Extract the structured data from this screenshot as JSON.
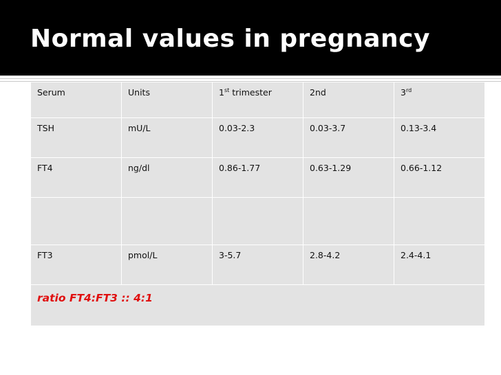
{
  "slide": {
    "title": "Normal values in pregnancy"
  },
  "table": {
    "header": {
      "serum": "Serum",
      "units": "Units",
      "t1_prefix": "1",
      "t1_sup": "st",
      "t1_suffix": " trimester",
      "t2": "2nd",
      "t3_prefix": "3",
      "t3_sup": "rd"
    },
    "rows": [
      {
        "serum": "TSH",
        "units": "mU/L",
        "t1": "0.03-2.3",
        "t2": "0.03-3.7",
        "t3": "0.13-3.4"
      },
      {
        "serum": "FT4",
        "units": "ng/dl",
        "t1": "0.86-1.77",
        "t2": "0.63-1.29",
        "t3": "0.66-1.12"
      },
      {
        "serum": "",
        "units": "",
        "t1": "",
        "t2": "",
        "t3": ""
      },
      {
        "serum": "FT3",
        "units": "pmol/L",
        "t1": "3-5.7",
        "t2": "2.8-4.2",
        "t3": "2.4-4.1"
      }
    ],
    "footer": "ratio FT4:FT3 :: 4:1"
  },
  "colors": {
    "title_bg": "#000000",
    "title_text": "#ffffff",
    "cell_bg": "#e3e3e3",
    "footer_text": "#e01010"
  }
}
